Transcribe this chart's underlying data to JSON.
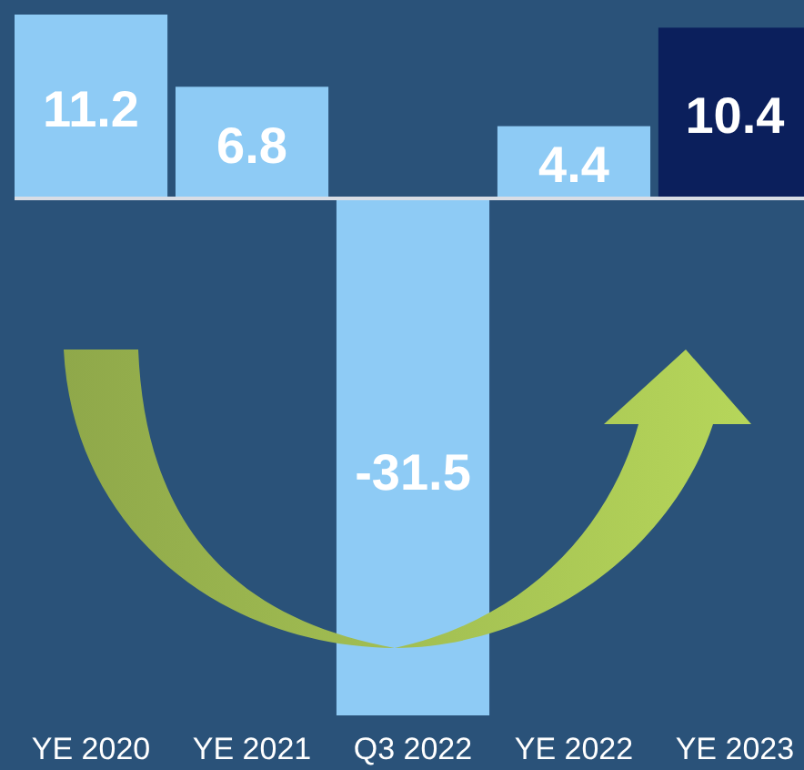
{
  "chart_data": {
    "type": "bar",
    "categories": [
      "YE 2020",
      "YE 2021",
      "Q3 2022",
      "YE 2022",
      "YE 2023"
    ],
    "values": [
      11.2,
      6.8,
      -31.5,
      4.4,
      10.4
    ],
    "colors": [
      "#8ecbf5",
      "#8ecbf5",
      "#8ecbf5",
      "#8ecbf5",
      "#0b1f5c"
    ],
    "data_labels": true
  }
}
